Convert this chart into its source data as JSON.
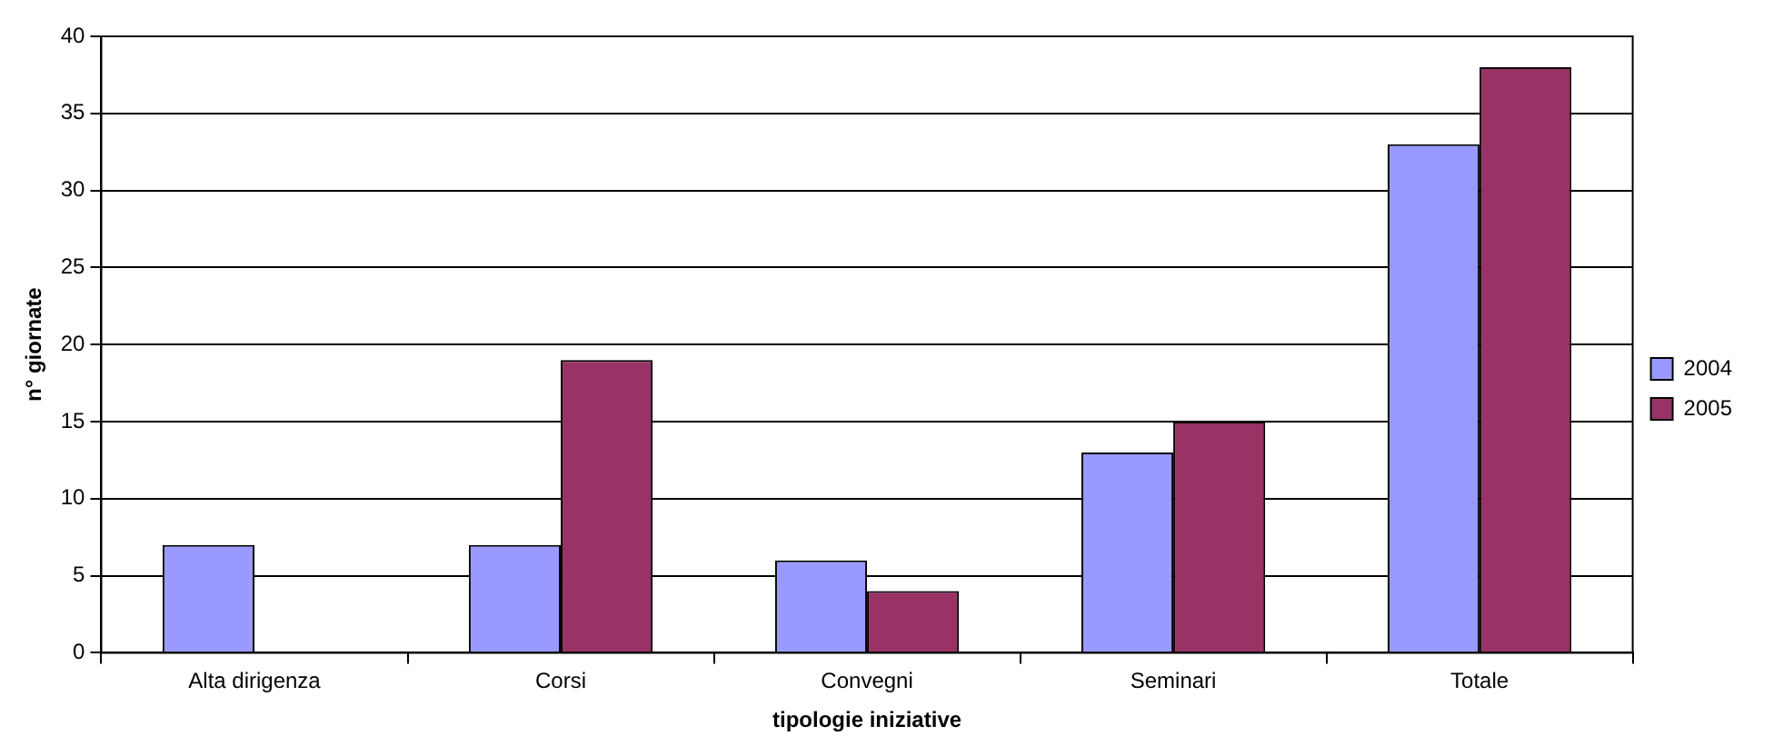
{
  "chart_data": {
    "type": "bar",
    "xlabel": "tipologie iniziative",
    "ylabel": "n° giornate",
    "categories": [
      "Alta dirigenza",
      "Corsi",
      "Convegni",
      "Seminari",
      "Totale"
    ],
    "series": [
      {
        "name": "2004",
        "color": "#9999ff",
        "values": [
          7,
          7,
          6,
          13,
          33
        ]
      },
      {
        "name": "2005",
        "color": "#993366",
        "values": [
          0,
          19,
          4,
          15,
          38
        ]
      }
    ],
    "ylim": [
      0,
      40
    ],
    "yticks": [
      0,
      5,
      10,
      15,
      20,
      25,
      30,
      35,
      40
    ],
    "grid": "y",
    "legend": "right"
  }
}
